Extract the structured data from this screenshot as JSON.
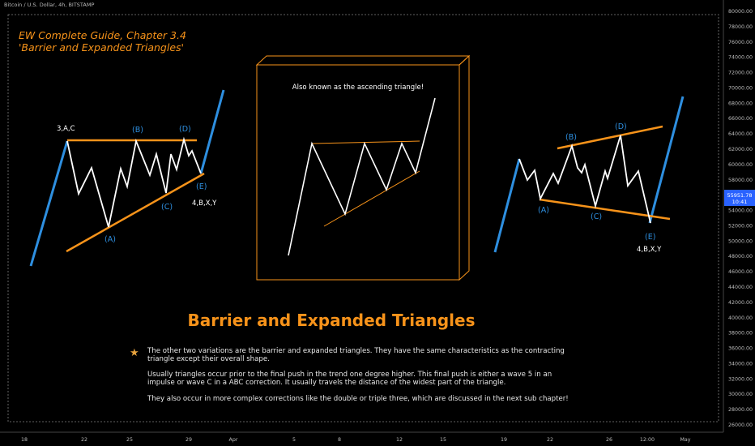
{
  "symbol_header": "Bitcoin / U.S. Dollar, 4h, BITSTAMP",
  "title_line1": "EW Complete Guide, Chapter 3.4",
  "title_line2": "'Barrier and Expanded Triangles'",
  "box_caption": "Also known as the ascending triangle!",
  "heading": "Barrier and Expanded Triangles",
  "paragraphs": [
    "The other two variations are the barrier and expanded triangles. They have the same characteristics as the contracting triangle except their overall shape.",
    "Usually triangles occur prior to the final push in the trend one degree higher. This final push is either a wave 5 in an impulse or wave C in a ABC correction. It usually travels the distance of the widest part of the triangle.",
    "They also occur in more complex corrections like the double or triple three, which are discussed in the next sub chapter!"
  ],
  "icon": "star-icon",
  "colors": {
    "orange": "#f7931a",
    "blue": "#2e8fe0",
    "price_tag": "#2962ff"
  },
  "price_tag": {
    "value": "55951.78",
    "countdown": "10:41"
  },
  "chart_data": {
    "type": "line",
    "x_ticks": [
      "18",
      "22",
      "25",
      "29",
      "Apr",
      "5",
      "8",
      "12",
      "15",
      "19",
      "22",
      "26",
      "12:00",
      "May"
    ],
    "y_ticks": [
      "80000.00",
      "78000.00",
      "76000.00",
      "74000.00",
      "72000.00",
      "70000.00",
      "68000.00",
      "66000.00",
      "64000.00",
      "62000.00",
      "60000.00",
      "58000.00",
      "56000.00",
      "54000.00",
      "52000.00",
      "50000.00",
      "48000.00",
      "46000.00",
      "44000.00",
      "42000.00",
      "40000.00",
      "38000.00",
      "36000.00",
      "34000.00",
      "32000.00",
      "30000.00",
      "28000.00",
      "26000.00"
    ],
    "ylim": [
      26000,
      80000
    ],
    "grid": false,
    "labels": {
      "barrier": {
        "top_left": "3,A,C",
        "b": "(B)",
        "d": "(D)",
        "a": "(A)",
        "c": "(C)",
        "e": "(E)",
        "end": "4,B,X,Y"
      },
      "expanded": {
        "a": "(A)",
        "b": "(B)",
        "c": "(C)",
        "d": "(D)",
        "e": "(E)",
        "end": "4,B,X,Y"
      }
    }
  }
}
